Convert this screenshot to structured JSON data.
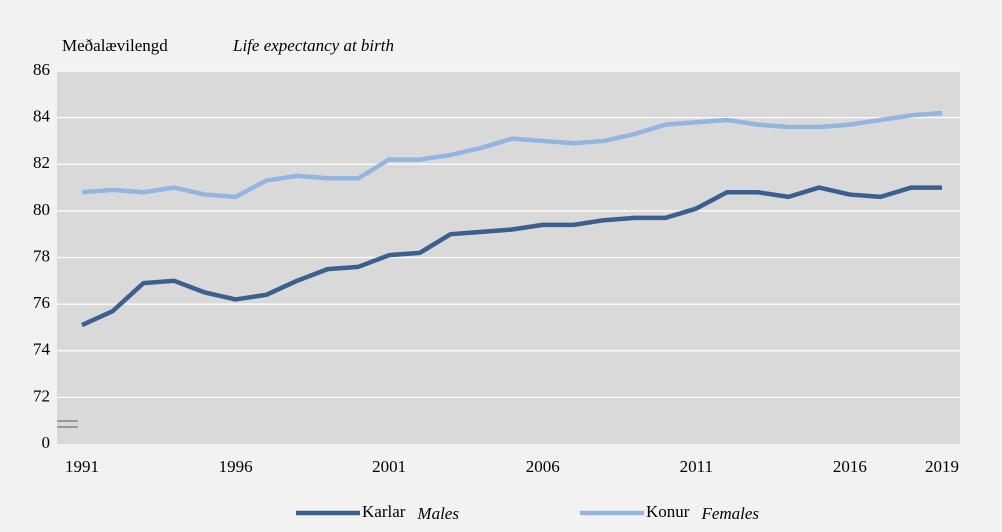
{
  "chart_data": {
    "type": "line",
    "title": "Meðalævilengd",
    "title_en": "Life expectancy at birth",
    "x": [
      1991,
      1992,
      1993,
      1994,
      1995,
      1996,
      1997,
      1998,
      1999,
      2000,
      2001,
      2002,
      2003,
      2004,
      2005,
      2006,
      2007,
      2008,
      2009,
      2010,
      2011,
      2012,
      2013,
      2014,
      2015,
      2016,
      2017,
      2018,
      2019
    ],
    "series": [
      {
        "name": "Karlar",
        "name_en": "Males",
        "color": "#3b5f8e",
        "values": [
          75.1,
          75.7,
          76.9,
          77.0,
          76.5,
          76.2,
          76.4,
          77.0,
          77.5,
          77.6,
          78.1,
          78.2,
          79.0,
          79.1,
          79.2,
          79.4,
          79.4,
          79.6,
          79.7,
          79.7,
          80.1,
          80.8,
          80.8,
          80.6,
          81.0,
          80.7,
          80.6,
          81.0,
          81.0
        ]
      },
      {
        "name": "Konur",
        "name_en": "Females",
        "color": "#94b5e1",
        "values": [
          80.8,
          80.9,
          80.8,
          81.0,
          80.7,
          80.6,
          81.3,
          81.5,
          81.4,
          81.4,
          82.2,
          82.2,
          82.4,
          82.7,
          83.1,
          83.0,
          82.9,
          83.0,
          83.3,
          83.7,
          83.8,
          83.9,
          83.7,
          83.6,
          83.6,
          83.7,
          83.9,
          84.1,
          84.2
        ]
      }
    ],
    "xlim": [
      1991,
      2019
    ],
    "xticks": [
      1991,
      1996,
      2001,
      2006,
      2011,
      2016,
      2019
    ],
    "ylim": [
      0,
      86
    ],
    "yticks": [
      0,
      72,
      74,
      76,
      78,
      80,
      82,
      84,
      86
    ],
    "axis_break": true,
    "grid": true
  }
}
